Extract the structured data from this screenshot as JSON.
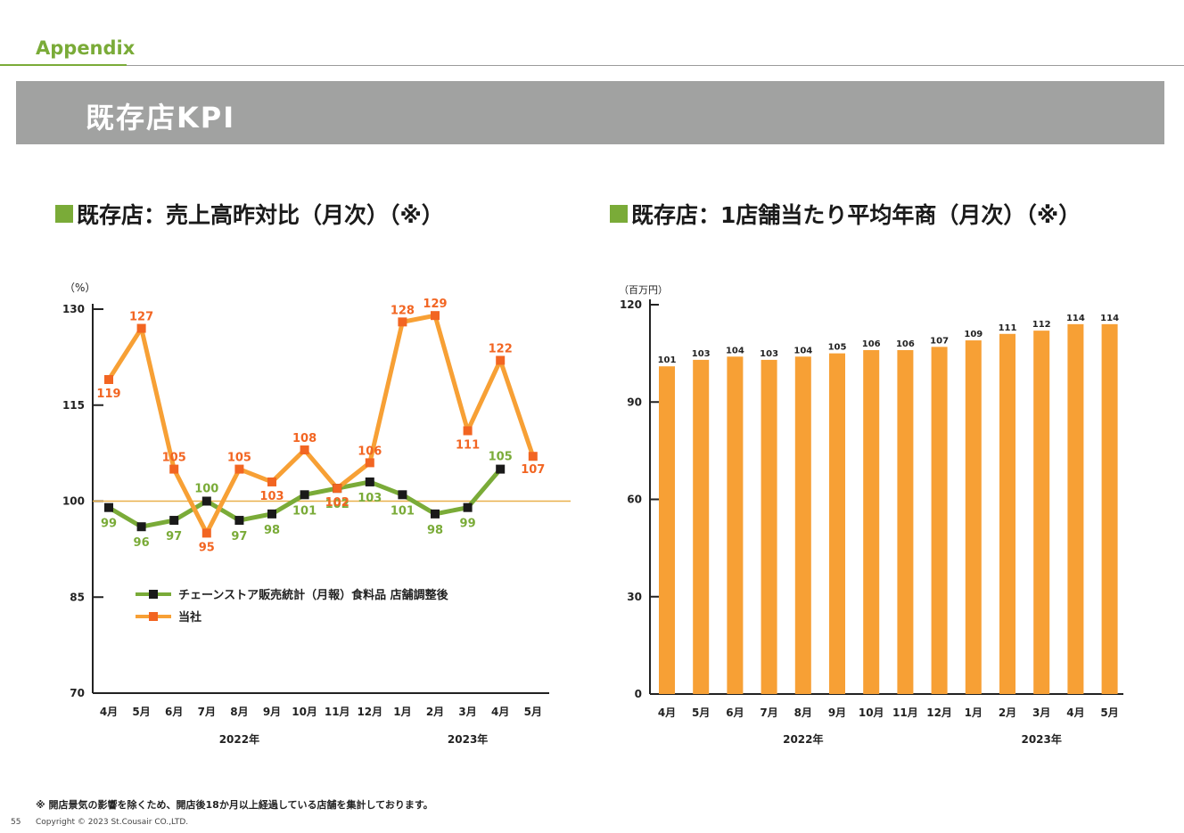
{
  "header": {
    "appendix": "Appendix",
    "title": "既存店KPI"
  },
  "left_title": "既存店：売上高昨対比（月次）（※）",
  "right_title": "既存店：1店舗当たり平均年商（月次）（※）",
  "colors": {
    "green": "#7aab38",
    "orange": "#f7a035",
    "orange_dark": "#f26522",
    "marker_black": "#1a1a1a",
    "reference_line": "#e9b04a",
    "title_bar": "#a1a2a1"
  },
  "chart_data": [
    {
      "type": "line",
      "unit": "（%）",
      "categories": [
        "4月",
        "5月",
        "6月",
        "7月",
        "8月",
        "9月",
        "10月",
        "11月",
        "12月",
        "1月",
        "2月",
        "3月",
        "4月",
        "5月"
      ],
      "year_labels": [
        {
          "label": "2022年",
          "from": "4月",
          "to": "12月"
        },
        {
          "label": "2023年",
          "from": "1月",
          "to": "5月"
        }
      ],
      "ylim": [
        70,
        130
      ],
      "yticks": [
        70,
        85,
        100,
        115,
        130
      ],
      "reference_line": 100,
      "series": [
        {
          "name": "チェーンストア販売統計（月報）食料品 店舗調整後",
          "values": [
            99,
            96,
            97,
            100,
            97,
            98,
            101,
            102,
            103,
            101,
            98,
            99,
            105,
            null
          ]
        },
        {
          "name": "当社",
          "values": [
            119,
            127,
            105,
            95,
            105,
            103,
            108,
            102,
            106,
            128,
            129,
            111,
            122,
            107
          ]
        }
      ],
      "legend_position": "bottom-left"
    },
    {
      "type": "bar",
      "unit": "（百万円）",
      "categories": [
        "4月",
        "5月",
        "6月",
        "7月",
        "8月",
        "9月",
        "10月",
        "11月",
        "12月",
        "1月",
        "2月",
        "3月",
        "4月",
        "5月"
      ],
      "year_labels": [
        {
          "label": "2022年",
          "from": "4月",
          "to": "12月"
        },
        {
          "label": "2023年",
          "from": "1月",
          "to": "5月"
        }
      ],
      "ylim": [
        0,
        120
      ],
      "yticks": [
        0,
        30,
        60,
        90,
        120
      ],
      "values": [
        101,
        103,
        104,
        103,
        104,
        105,
        106,
        106,
        107,
        109,
        111,
        112,
        114,
        114
      ]
    }
  ],
  "footnote": "※ 開店景気の影響を除くため、開店後18か月以上経過している店舗を集計しております。",
  "page_number": "55",
  "copyright": "Copyright © 2023 St.Cousair CO.,LTD."
}
